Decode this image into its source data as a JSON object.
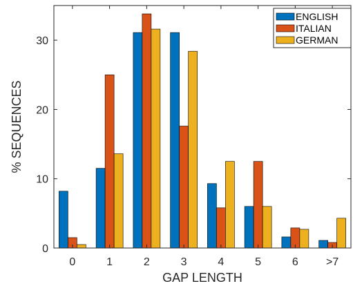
{
  "chart_data": {
    "type": "bar",
    "xlabel": "GAP LENGTH",
    "ylabel": "% SEQUENCES",
    "categories": [
      "0",
      "1",
      "2",
      "3",
      "4",
      "5",
      "6",
      ">7"
    ],
    "ylim": [
      0,
      35
    ],
    "yticks": [
      0,
      10,
      20,
      30
    ],
    "grid": false,
    "legend_position": "top-right",
    "series": [
      {
        "name": "ENGLISH",
        "color": "#0072BD",
        "values": [
          8.2,
          11.5,
          31.1,
          31.1,
          9.3,
          6.0,
          1.6,
          1.1
        ]
      },
      {
        "name": "ITALIAN",
        "color": "#D95319",
        "values": [
          1.5,
          25.0,
          33.8,
          17.6,
          5.8,
          12.5,
          2.9,
          0.8
        ]
      },
      {
        "name": "GERMAN",
        "color": "#EDB120",
        "values": [
          0.5,
          13.6,
          31.6,
          28.4,
          12.5,
          6.0,
          2.7,
          4.3
        ]
      }
    ]
  }
}
